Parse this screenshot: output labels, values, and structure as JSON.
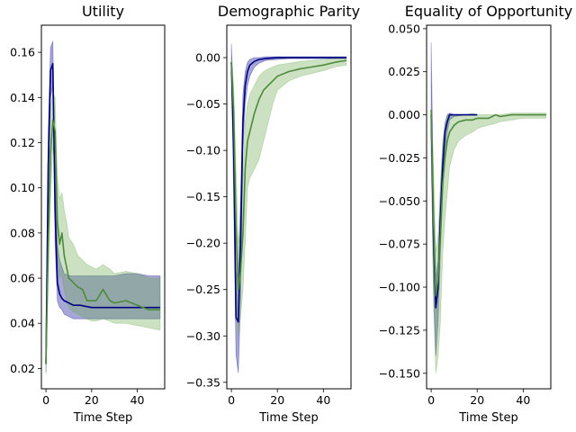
{
  "chart_data": [
    {
      "type": "line",
      "title": "Utility",
      "xlabel": "Time Step",
      "ylabel": "",
      "xlim": [
        -2,
        52
      ],
      "ylim": [
        0.011,
        0.172
      ],
      "xticks": [
        0,
        20,
        40
      ],
      "yticks": [
        0.02,
        0.04,
        0.06,
        0.08,
        0.1,
        0.12,
        0.14,
        0.16
      ],
      "ytick_labels": [
        "0.02",
        "0.04",
        "0.06",
        "0.08",
        "0.10",
        "0.12",
        "0.14",
        "0.16"
      ],
      "series": [
        {
          "color": "#000080",
          "fill": "#00008b",
          "x": [
            0,
            1,
            2,
            3,
            4,
            5,
            6,
            7,
            8,
            10,
            12,
            15,
            20,
            25,
            30,
            35,
            40,
            45,
            50
          ],
          "y": [
            0.022,
            0.11,
            0.152,
            0.155,
            0.09,
            0.058,
            0.053,
            0.051,
            0.05,
            0.049,
            0.048,
            0.048,
            0.047,
            0.047,
            0.047,
            0.047,
            0.047,
            0.047,
            0.047
          ],
          "upper": [
            0.027,
            0.125,
            0.162,
            0.165,
            0.105,
            0.075,
            0.068,
            0.065,
            0.062,
            0.061,
            0.061,
            0.061,
            0.061,
            0.061,
            0.061,
            0.062,
            0.062,
            0.061,
            0.061
          ],
          "lower": [
            0.018,
            0.095,
            0.14,
            0.145,
            0.075,
            0.05,
            0.047,
            0.046,
            0.044,
            0.043,
            0.042,
            0.042,
            0.042,
            0.042,
            0.042,
            0.042,
            0.042,
            0.042,
            0.042
          ]
        },
        {
          "color": "#4e8a3c",
          "fill": "#6aa84f",
          "x": [
            0,
            1,
            2,
            3,
            4,
            5,
            6,
            7,
            8,
            9,
            10,
            12,
            14,
            16,
            18,
            20,
            22,
            25,
            28,
            30,
            35,
            40,
            45,
            50
          ],
          "y": [
            0.022,
            0.075,
            0.115,
            0.13,
            0.125,
            0.085,
            0.075,
            0.08,
            0.07,
            0.065,
            0.06,
            0.058,
            0.056,
            0.055,
            0.05,
            0.05,
            0.05,
            0.055,
            0.05,
            0.049,
            0.05,
            0.048,
            0.046,
            0.046
          ],
          "upper": [
            0.027,
            0.09,
            0.135,
            0.142,
            0.14,
            0.105,
            0.095,
            0.098,
            0.09,
            0.085,
            0.078,
            0.075,
            0.07,
            0.068,
            0.066,
            0.065,
            0.064,
            0.066,
            0.064,
            0.062,
            0.063,
            0.062,
            0.06,
            0.06
          ],
          "lower": [
            0.018,
            0.06,
            0.095,
            0.118,
            0.11,
            0.07,
            0.06,
            0.062,
            0.055,
            0.05,
            0.047,
            0.045,
            0.044,
            0.043,
            0.042,
            0.041,
            0.041,
            0.042,
            0.041,
            0.04,
            0.04,
            0.039,
            0.038,
            0.037
          ]
        }
      ]
    },
    {
      "type": "line",
      "title": "Demographic Parity",
      "xlabel": "Time Step",
      "ylabel": "",
      "xlim": [
        -2,
        52
      ],
      "ylim": [
        -0.357,
        0.035
      ],
      "xticks": [
        0,
        20,
        40
      ],
      "yticks": [
        0.0,
        -0.05,
        -0.1,
        -0.15,
        -0.2,
        -0.25,
        -0.3,
        -0.35
      ],
      "ytick_labels": [
        "0.00",
        "−0.05",
        "−0.10",
        "−0.15",
        "−0.20",
        "−0.25",
        "−0.30",
        "−0.35"
      ],
      "series": [
        {
          "color": "#000080",
          "fill": "#00008b",
          "x": [
            0,
            1,
            2,
            3,
            4,
            5,
            6,
            7,
            8,
            10,
            12,
            15,
            20,
            25,
            30,
            40,
            50
          ],
          "y": [
            -0.005,
            -0.1,
            -0.28,
            -0.285,
            -0.2,
            -0.07,
            -0.03,
            -0.015,
            -0.008,
            -0.004,
            -0.002,
            -0.001,
            0.0,
            0.0,
            0.0,
            0.0,
            0.0
          ],
          "upper": [
            0.015,
            -0.05,
            -0.23,
            -0.24,
            -0.15,
            -0.04,
            -0.015,
            -0.005,
            -0.002,
            0.0,
            0.0,
            0.001,
            0.001,
            0.001,
            0.001,
            0.001,
            0.001
          ],
          "lower": [
            -0.02,
            -0.15,
            -0.32,
            -0.34,
            -0.26,
            -0.1,
            -0.05,
            -0.03,
            -0.02,
            -0.01,
            -0.006,
            -0.003,
            -0.002,
            -0.001,
            -0.001,
            -0.001,
            -0.001
          ]
        },
        {
          "color": "#4e8a3c",
          "fill": "#6aa84f",
          "x": [
            0,
            1,
            2,
            3,
            4,
            5,
            6,
            7,
            8,
            10,
            12,
            14,
            16,
            18,
            20,
            25,
            30,
            35,
            40,
            45,
            50
          ],
          "y": [
            -0.005,
            -0.06,
            -0.18,
            -0.25,
            -0.23,
            -0.19,
            -0.12,
            -0.09,
            -0.08,
            -0.06,
            -0.045,
            -0.035,
            -0.03,
            -0.025,
            -0.02,
            -0.015,
            -0.012,
            -0.01,
            -0.008,
            -0.005,
            -0.003
          ],
          "upper": [
            0.0,
            -0.03,
            -0.12,
            -0.2,
            -0.18,
            -0.13,
            -0.07,
            -0.05,
            -0.04,
            -0.03,
            -0.02,
            -0.015,
            -0.012,
            -0.01,
            -0.008,
            -0.006,
            -0.004,
            -0.003,
            -0.002,
            -0.001,
            0.0
          ],
          "lower": [
            -0.01,
            -0.09,
            -0.24,
            -0.3,
            -0.28,
            -0.25,
            -0.2,
            -0.14,
            -0.13,
            -0.12,
            -0.11,
            -0.09,
            -0.07,
            -0.05,
            -0.035,
            -0.025,
            -0.02,
            -0.017,
            -0.014,
            -0.01,
            -0.008
          ]
        }
      ]
    },
    {
      "type": "line",
      "title": "Equality of Opportunity",
      "xlabel": "Time Step",
      "ylabel": "",
      "xlim": [
        -2,
        52
      ],
      "ylim": [
        -0.159,
        0.052
      ],
      "xticks": [
        0,
        20,
        40
      ],
      "yticks": [
        0.05,
        0.025,
        0.0,
        -0.025,
        -0.05,
        -0.075,
        -0.1,
        -0.125,
        -0.15
      ],
      "ytick_labels": [
        "0.050",
        "0.025",
        "0.000",
        "−0.025",
        "−0.050",
        "−0.075",
        "−0.100",
        "−0.125",
        "−0.150"
      ],
      "series": [
        {
          "color": "#000080",
          "fill": "#00008b",
          "x": [
            0,
            1,
            2,
            3,
            4,
            5,
            6,
            7,
            8,
            10,
            15,
            20
          ],
          "y": [
            0.0,
            -0.07,
            -0.112,
            -0.1,
            -0.06,
            -0.03,
            -0.01,
            -0.004,
            0.0,
            0.0,
            0.0,
            0.0
          ],
          "upper": [
            0.042,
            -0.05,
            -0.095,
            -0.085,
            -0.045,
            -0.02,
            -0.005,
            0.0,
            0.001,
            0.0,
            0.0,
            0.0
          ],
          "lower": [
            -0.02,
            -0.1,
            -0.14,
            -0.12,
            -0.08,
            -0.045,
            -0.02,
            -0.01,
            -0.003,
            -0.001,
            0.0,
            0.0
          ]
        },
        {
          "color": "#4e8a3c",
          "fill": "#6aa84f",
          "x": [
            0,
            1,
            2,
            3,
            4,
            5,
            6,
            7,
            8,
            10,
            12,
            15,
            18,
            20,
            22,
            25,
            28,
            30,
            35,
            40,
            45,
            50
          ],
          "y": [
            0.003,
            -0.06,
            -0.105,
            -0.095,
            -0.07,
            -0.04,
            -0.025,
            -0.015,
            -0.01,
            -0.006,
            -0.004,
            -0.003,
            -0.003,
            -0.002,
            -0.002,
            -0.002,
            0.0,
            -0.001,
            0.0,
            0.0,
            0.0,
            0.0
          ],
          "upper": [
            0.005,
            -0.03,
            -0.08,
            -0.07,
            -0.04,
            -0.015,
            -0.005,
            0.0,
            0.0,
            0.0,
            0.0,
            0.0,
            0.001,
            0.0,
            0.0,
            0.0,
            0.0,
            0.0,
            0.001,
            0.001,
            0.001,
            0.001
          ],
          "lower": [
            0.0,
            -0.11,
            -0.15,
            -0.14,
            -0.12,
            -0.08,
            -0.06,
            -0.045,
            -0.03,
            -0.02,
            -0.015,
            -0.012,
            -0.01,
            -0.008,
            -0.007,
            -0.006,
            -0.005,
            -0.004,
            -0.003,
            -0.002,
            -0.002,
            -0.002
          ]
        }
      ]
    }
  ]
}
